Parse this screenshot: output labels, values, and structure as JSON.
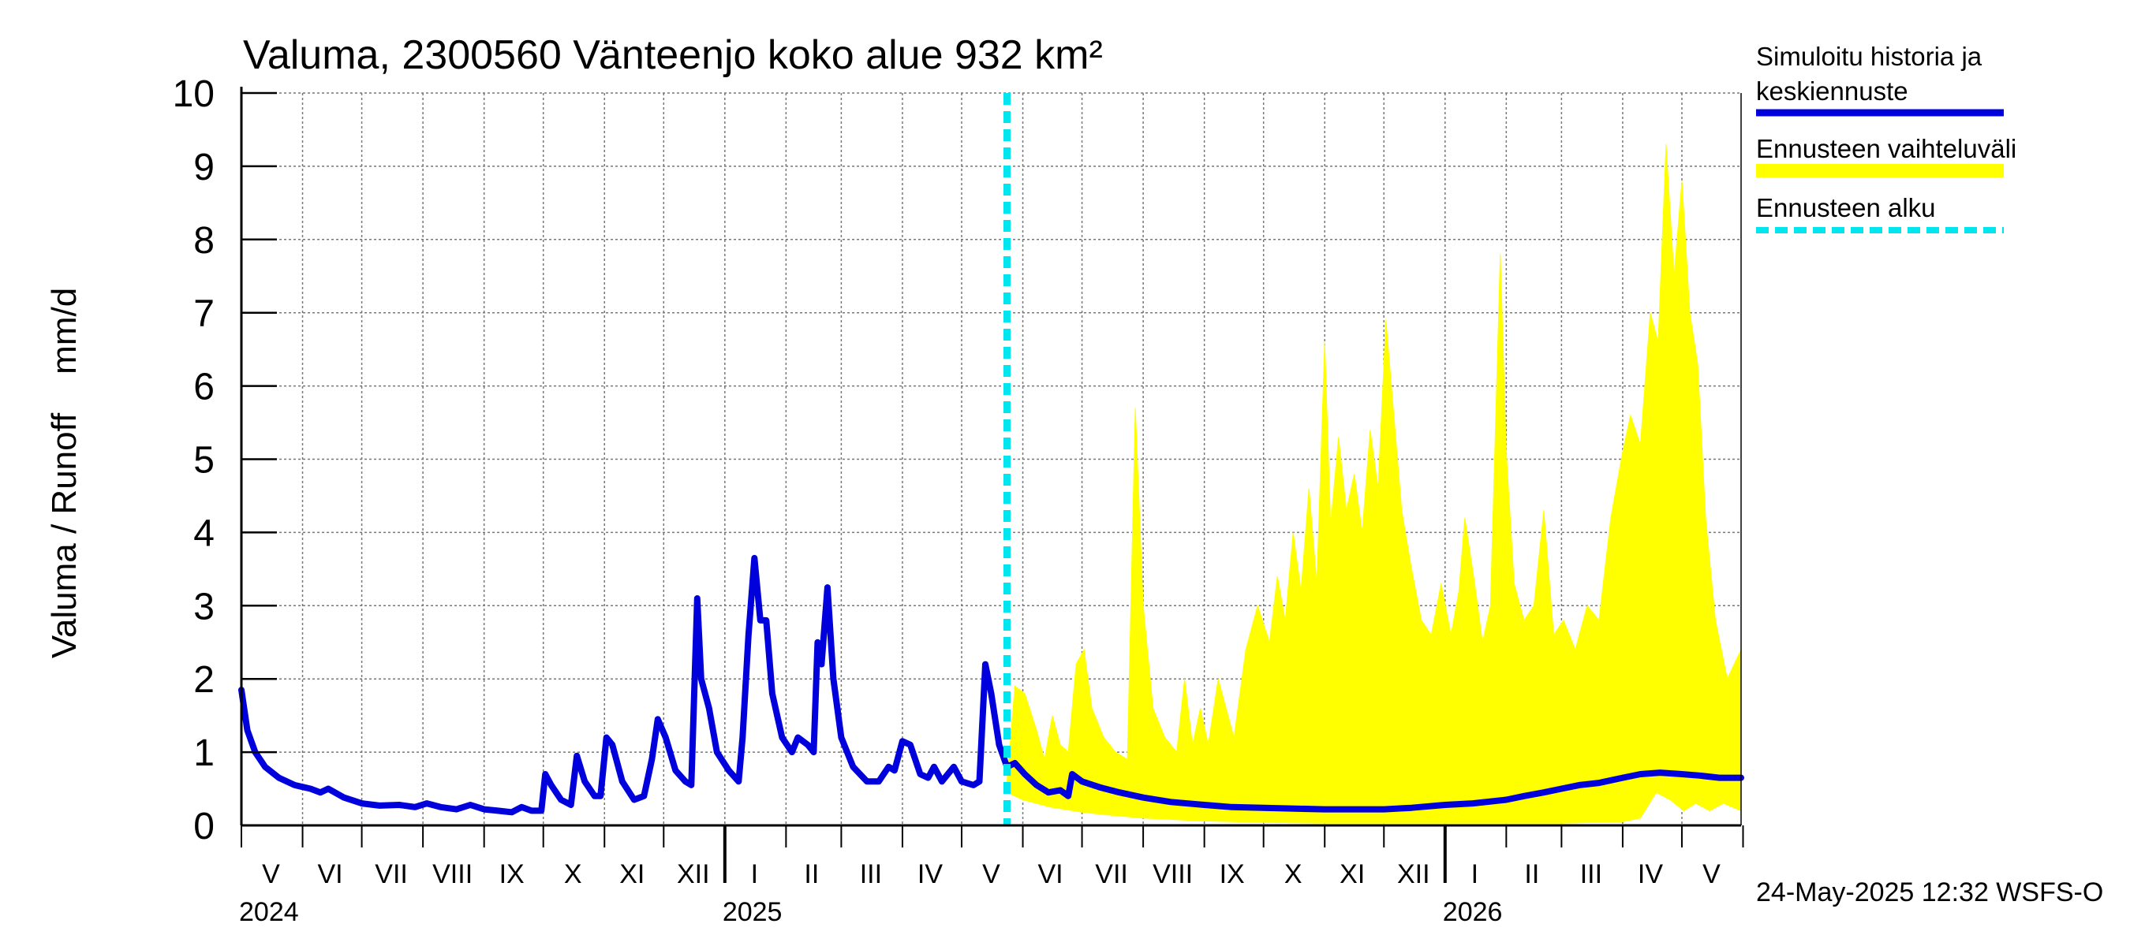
{
  "chart_data": {
    "type": "line",
    "title": "Valuma, 2300560 Vänteenjo koko alue 932 km²",
    "title_parts": [
      "Valuma, 2300560 V",
      "ä",
      "nteenjo koko alue 932 km²"
    ],
    "ylabel": "Valuma / Runoff    mm/d",
    "ylim": [
      0,
      10
    ],
    "yticks": [
      "0",
      "1",
      "2",
      "3",
      "4",
      "5",
      "6",
      "7",
      "8",
      "9",
      "10"
    ],
    "x_start": "2024-05-01",
    "x_end": "2026-05-31",
    "month_labels": [
      {
        "label": "V",
        "date": "2024-05-16"
      },
      {
        "label": "VI",
        "date": "2024-06-15"
      },
      {
        "label": "VII",
        "date": "2024-07-16"
      },
      {
        "label": "VIII",
        "date": "2024-08-16"
      },
      {
        "label": "IX",
        "date": "2024-09-15"
      },
      {
        "label": "X",
        "date": "2024-10-16"
      },
      {
        "label": "XI",
        "date": "2024-11-15"
      },
      {
        "label": "XII",
        "date": "2024-12-16"
      },
      {
        "label": "I",
        "date": "2025-01-16"
      },
      {
        "label": "II",
        "date": "2025-02-14"
      },
      {
        "label": "III",
        "date": "2025-03-16"
      },
      {
        "label": "IV",
        "date": "2025-04-15"
      },
      {
        "label": "V",
        "date": "2025-05-16"
      },
      {
        "label": "VI",
        "date": "2025-06-15"
      },
      {
        "label": "VII",
        "date": "2025-07-16"
      },
      {
        "label": "VIII",
        "date": "2025-08-16"
      },
      {
        "label": "IX",
        "date": "2025-09-15"
      },
      {
        "label": "X",
        "date": "2025-10-16"
      },
      {
        "label": "XI",
        "date": "2025-11-15"
      },
      {
        "label": "XII",
        "date": "2025-12-16"
      },
      {
        "label": "I",
        "date": "2026-01-16"
      },
      {
        "label": "II",
        "date": "2026-02-14"
      },
      {
        "label": "III",
        "date": "2026-03-16"
      },
      {
        "label": "IV",
        "date": "2026-04-15"
      },
      {
        "label": "V",
        "date": "2026-05-16"
      }
    ],
    "month_boundaries": [
      "2024-05-01",
      "2024-06-01",
      "2024-07-01",
      "2024-08-01",
      "2024-09-01",
      "2024-10-01",
      "2024-11-01",
      "2024-12-01",
      "2025-01-01",
      "2025-02-01",
      "2025-03-01",
      "2025-04-01",
      "2025-05-01",
      "2025-06-01",
      "2025-07-01",
      "2025-08-01",
      "2025-09-01",
      "2025-10-01",
      "2025-11-01",
      "2025-12-01",
      "2026-01-01",
      "2026-02-01",
      "2026-03-01",
      "2026-04-01",
      "2026-05-01",
      "2026-06-01"
    ],
    "year_labels": [
      {
        "label": "2024",
        "date": "2024-05-01"
      },
      {
        "label": "2025",
        "date": "2025-01-01"
      },
      {
        "label": "2026",
        "date": "2026-01-01"
      }
    ],
    "forecast_start": "2025-05-24",
    "series": [
      {
        "name": "Simuloitu historia ja keskiennuste",
        "color": "#0000dd",
        "points": [
          [
            "2024-05-01",
            1.85
          ],
          [
            "2024-05-04",
            1.3
          ],
          [
            "2024-05-08",
            1.0
          ],
          [
            "2024-05-13",
            0.8
          ],
          [
            "2024-05-20",
            0.65
          ],
          [
            "2024-05-28",
            0.55
          ],
          [
            "2024-06-05",
            0.5
          ],
          [
            "2024-06-10",
            0.45
          ],
          [
            "2024-06-14",
            0.5
          ],
          [
            "2024-06-22",
            0.38
          ],
          [
            "2024-07-01",
            0.3
          ],
          [
            "2024-07-10",
            0.27
          ],
          [
            "2024-07-20",
            0.28
          ],
          [
            "2024-07-28",
            0.25
          ],
          [
            "2024-08-03",
            0.3
          ],
          [
            "2024-08-10",
            0.25
          ],
          [
            "2024-08-18",
            0.22
          ],
          [
            "2024-08-25",
            0.28
          ],
          [
            "2024-09-01",
            0.22
          ],
          [
            "2024-09-08",
            0.2
          ],
          [
            "2024-09-15",
            0.18
          ],
          [
            "2024-09-20",
            0.25
          ],
          [
            "2024-09-25",
            0.2
          ],
          [
            "2024-09-30",
            0.2
          ],
          [
            "2024-10-02",
            0.7
          ],
          [
            "2024-10-05",
            0.55
          ],
          [
            "2024-10-10",
            0.35
          ],
          [
            "2024-10-15",
            0.28
          ],
          [
            "2024-10-18",
            0.95
          ],
          [
            "2024-10-22",
            0.6
          ],
          [
            "2024-10-27",
            0.4
          ],
          [
            "2024-10-30",
            0.4
          ],
          [
            "2024-11-02",
            1.2
          ],
          [
            "2024-11-05",
            1.1
          ],
          [
            "2024-11-10",
            0.6
          ],
          [
            "2024-11-16",
            0.35
          ],
          [
            "2024-11-21",
            0.4
          ],
          [
            "2024-11-25",
            0.9
          ],
          [
            "2024-11-28",
            1.45
          ],
          [
            "2024-12-02",
            1.2
          ],
          [
            "2024-12-07",
            0.75
          ],
          [
            "2024-12-12",
            0.6
          ],
          [
            "2024-12-15",
            0.55
          ],
          [
            "2024-12-18",
            3.1
          ],
          [
            "2024-12-20",
            2.0
          ],
          [
            "2024-12-24",
            1.6
          ],
          [
            "2024-12-28",
            1.0
          ],
          [
            "2025-01-03",
            0.75
          ],
          [
            "2025-01-08",
            0.6
          ],
          [
            "2025-01-10",
            1.2
          ],
          [
            "2025-01-13",
            2.6
          ],
          [
            "2025-01-16",
            3.65
          ],
          [
            "2025-01-19",
            2.8
          ],
          [
            "2025-01-22",
            2.8
          ],
          [
            "2025-01-25",
            1.8
          ],
          [
            "2025-01-30",
            1.2
          ],
          [
            "2025-02-04",
            1.0
          ],
          [
            "2025-02-07",
            1.2
          ],
          [
            "2025-02-12",
            1.1
          ],
          [
            "2025-02-15",
            1.0
          ],
          [
            "2025-02-17",
            2.5
          ],
          [
            "2025-02-19",
            2.2
          ],
          [
            "2025-02-22",
            3.25
          ],
          [
            "2025-02-25",
            2.0
          ],
          [
            "2025-03-01",
            1.2
          ],
          [
            "2025-03-07",
            0.8
          ],
          [
            "2025-03-14",
            0.6
          ],
          [
            "2025-03-20",
            0.6
          ],
          [
            "2025-03-25",
            0.8
          ],
          [
            "2025-03-28",
            0.75
          ],
          [
            "2025-04-01",
            1.15
          ],
          [
            "2025-04-05",
            1.1
          ],
          [
            "2025-04-10",
            0.7
          ],
          [
            "2025-04-14",
            0.65
          ],
          [
            "2025-04-17",
            0.8
          ],
          [
            "2025-04-21",
            0.6
          ],
          [
            "2025-04-27",
            0.8
          ],
          [
            "2025-05-01",
            0.6
          ],
          [
            "2025-05-07",
            0.55
          ],
          [
            "2025-05-10",
            0.6
          ],
          [
            "2025-05-13",
            2.2
          ],
          [
            "2025-05-16",
            1.8
          ],
          [
            "2025-05-20",
            1.1
          ],
          [
            "2025-05-24",
            0.8
          ],
          [
            "2025-05-28",
            0.85
          ],
          [
            "2025-06-02",
            0.7
          ],
          [
            "2025-06-08",
            0.55
          ],
          [
            "2025-06-14",
            0.45
          ],
          [
            "2025-06-20",
            0.48
          ],
          [
            "2025-06-24",
            0.4
          ],
          [
            "2025-06-26",
            0.7
          ],
          [
            "2025-07-01",
            0.6
          ],
          [
            "2025-07-10",
            0.52
          ],
          [
            "2025-07-20",
            0.45
          ],
          [
            "2025-08-01",
            0.38
          ],
          [
            "2025-08-15",
            0.32
          ],
          [
            "2025-09-01",
            0.28
          ],
          [
            "2025-09-15",
            0.25
          ],
          [
            "2025-10-01",
            0.24
          ],
          [
            "2025-10-15",
            0.23
          ],
          [
            "2025-11-01",
            0.22
          ],
          [
            "2025-11-15",
            0.22
          ],
          [
            "2025-12-01",
            0.22
          ],
          [
            "2025-12-15",
            0.24
          ],
          [
            "2026-01-01",
            0.28
          ],
          [
            "2026-01-15",
            0.3
          ],
          [
            "2026-02-01",
            0.35
          ],
          [
            "2026-02-10",
            0.4
          ],
          [
            "2026-02-20",
            0.45
          ],
          [
            "2026-03-01",
            0.5
          ],
          [
            "2026-03-10",
            0.55
          ],
          [
            "2026-03-20",
            0.58
          ],
          [
            "2026-04-01",
            0.65
          ],
          [
            "2026-04-10",
            0.7
          ],
          [
            "2026-04-20",
            0.72
          ],
          [
            "2026-05-01",
            0.7
          ],
          [
            "2026-05-10",
            0.68
          ],
          [
            "2026-05-20",
            0.65
          ],
          [
            "2026-05-31",
            0.65
          ]
        ]
      },
      {
        "name": "Ennusteen vaihteluväli",
        "color": "#ffff00",
        "upper": [
          [
            "2025-05-24",
            0.6
          ],
          [
            "2025-05-28",
            1.9
          ],
          [
            "2025-06-02",
            1.8
          ],
          [
            "2025-06-08",
            1.3
          ],
          [
            "2025-06-12",
            0.9
          ],
          [
            "2025-06-16",
            1.5
          ],
          [
            "2025-06-20",
            1.1
          ],
          [
            "2025-06-24",
            1.0
          ],
          [
            "2025-06-28",
            2.2
          ],
          [
            "2025-07-02",
            2.4
          ],
          [
            "2025-07-06",
            1.6
          ],
          [
            "2025-07-12",
            1.2
          ],
          [
            "2025-07-18",
            1.0
          ],
          [
            "2025-07-24",
            0.9
          ],
          [
            "2025-07-28",
            5.7
          ],
          [
            "2025-08-01",
            3.0
          ],
          [
            "2025-08-06",
            1.6
          ],
          [
            "2025-08-12",
            1.2
          ],
          [
            "2025-08-18",
            1.0
          ],
          [
            "2025-08-22",
            2.0
          ],
          [
            "2025-08-26",
            1.1
          ],
          [
            "2025-08-30",
            1.6
          ],
          [
            "2025-09-03",
            1.1
          ],
          [
            "2025-09-08",
            2.0
          ],
          [
            "2025-09-12",
            1.6
          ],
          [
            "2025-09-16",
            1.2
          ],
          [
            "2025-09-22",
            2.4
          ],
          [
            "2025-09-28",
            3.0
          ],
          [
            "2025-10-04",
            2.5
          ],
          [
            "2025-10-08",
            3.4
          ],
          [
            "2025-10-12",
            2.8
          ],
          [
            "2025-10-16",
            4.0
          ],
          [
            "2025-10-20",
            3.2
          ],
          [
            "2025-10-24",
            4.6
          ],
          [
            "2025-10-28",
            3.3
          ],
          [
            "2025-11-01",
            6.6
          ],
          [
            "2025-11-04",
            4.1
          ],
          [
            "2025-11-08",
            5.3
          ],
          [
            "2025-11-12",
            4.3
          ],
          [
            "2025-11-16",
            4.8
          ],
          [
            "2025-11-20",
            4.0
          ],
          [
            "2025-11-24",
            5.4
          ],
          [
            "2025-11-28",
            4.6
          ],
          [
            "2025-12-02",
            6.9
          ],
          [
            "2025-12-06",
            5.6
          ],
          [
            "2025-12-10",
            4.3
          ],
          [
            "2025-12-15",
            3.5
          ],
          [
            "2025-12-20",
            2.8
          ],
          [
            "2025-12-25",
            2.6
          ],
          [
            "2025-12-30",
            3.3
          ],
          [
            "2026-01-04",
            2.6
          ],
          [
            "2026-01-08",
            3.2
          ],
          [
            "2026-01-11",
            4.2
          ],
          [
            "2026-01-16",
            3.3
          ],
          [
            "2026-01-20",
            2.5
          ],
          [
            "2026-01-24",
            3.0
          ],
          [
            "2026-01-29",
            7.8
          ],
          [
            "2026-02-01",
            5.1
          ],
          [
            "2026-02-05",
            3.3
          ],
          [
            "2026-02-10",
            2.8
          ],
          [
            "2026-02-15",
            3.0
          ],
          [
            "2026-02-20",
            4.3
          ],
          [
            "2026-02-25",
            2.6
          ],
          [
            "2026-03-02",
            2.8
          ],
          [
            "2026-03-08",
            2.4
          ],
          [
            "2026-03-14",
            3.0
          ],
          [
            "2026-03-20",
            2.8
          ],
          [
            "2026-03-26",
            4.2
          ],
          [
            "2026-04-01",
            5.1
          ],
          [
            "2026-04-05",
            5.6
          ],
          [
            "2026-04-10",
            5.2
          ],
          [
            "2026-04-15",
            7.0
          ],
          [
            "2026-04-19",
            6.6
          ],
          [
            "2026-04-23",
            9.3
          ],
          [
            "2026-04-27",
            7.5
          ],
          [
            "2026-05-01",
            8.8
          ],
          [
            "2026-05-05",
            7.0
          ],
          [
            "2026-05-09",
            6.3
          ],
          [
            "2026-05-13",
            4.2
          ],
          [
            "2026-05-18",
            2.8
          ],
          [
            "2026-05-24",
            2.0
          ],
          [
            "2026-05-31",
            2.4
          ]
        ],
        "lower": [
          [
            "2025-05-24",
            0.45
          ],
          [
            "2025-06-01",
            0.35
          ],
          [
            "2025-06-15",
            0.25
          ],
          [
            "2025-07-01",
            0.18
          ],
          [
            "2025-07-15",
            0.14
          ],
          [
            "2025-08-01",
            0.1
          ],
          [
            "2025-09-01",
            0.06
          ],
          [
            "2025-10-01",
            0.04
          ],
          [
            "2025-11-01",
            0.03
          ],
          [
            "2025-12-01",
            0.03
          ],
          [
            "2026-01-01",
            0.03
          ],
          [
            "2026-02-01",
            0.03
          ],
          [
            "2026-03-01",
            0.03
          ],
          [
            "2026-04-01",
            0.05
          ],
          [
            "2026-04-10",
            0.1
          ],
          [
            "2026-04-18",
            0.45
          ],
          [
            "2026-04-25",
            0.35
          ],
          [
            "2026-05-02",
            0.2
          ],
          [
            "2026-05-08",
            0.3
          ],
          [
            "2026-05-15",
            0.2
          ],
          [
            "2026-05-22",
            0.3
          ],
          [
            "2026-05-31",
            0.2
          ]
        ]
      },
      {
        "name": "Ennusteen alku",
        "color": "#00e5ee"
      }
    ],
    "legend": {
      "placement": "right",
      "entries": [
        {
          "line1": "Simuloitu historia ja",
          "line2": "keskiennuste",
          "color": "#0000dd",
          "style": "solid"
        },
        {
          "line1": "Ennusteen vaihteluväli",
          "color": "#ffff00",
          "style": "band"
        },
        {
          "line1": "Ennusteen alku",
          "color": "#00e5ee",
          "style": "dashed"
        }
      ]
    },
    "grid": true,
    "footer": "24-May-2025 12:32 WSFS-O"
  }
}
